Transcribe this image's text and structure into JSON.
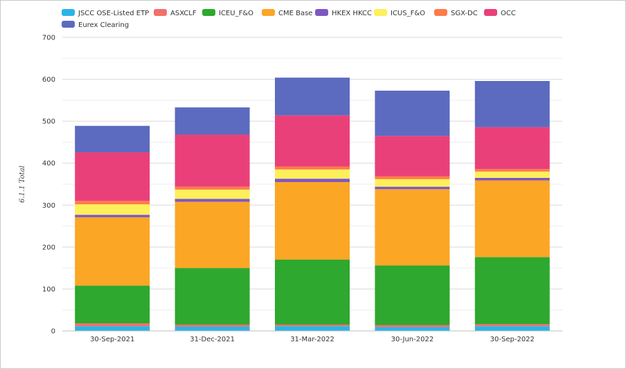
{
  "chart_data": {
    "type": "bar",
    "stacked": true,
    "title": "",
    "xlabel": "",
    "ylabel": "6.1.1 Total",
    "ylim": [
      0,
      700
    ],
    "yticks": [
      0,
      100,
      200,
      300,
      400,
      500,
      600,
      700
    ],
    "grid": true,
    "legend_position": "top-left",
    "categories": [
      "30-Sep-2021",
      "31-Dec-2021",
      "31-Mar-2022",
      "30-Jun-2022",
      "30-Sep-2022"
    ],
    "series": [
      {
        "name": "JSCC OSE-Listed ETP",
        "color": "#2ab5ea",
        "values": [
          11,
          10,
          11,
          9,
          11
        ]
      },
      {
        "name": "ASXCLF",
        "color": "#f1706a",
        "values": [
          7,
          5,
          4,
          5,
          5
        ]
      },
      {
        "name": "ICEU_F&O",
        "color": "#2ea82e",
        "values": [
          90,
          135,
          155,
          142,
          160
        ]
      },
      {
        "name": "CME Base",
        "color": "#fca626",
        "values": [
          163,
          158,
          185,
          182,
          183
        ]
      },
      {
        "name": "HKEX HKCC",
        "color": "#7e57c2",
        "values": [
          6,
          7,
          8,
          6,
          6
        ]
      },
      {
        "name": "ICUS_F&O",
        "color": "#fdf05a",
        "values": [
          25,
          22,
          22,
          18,
          15
        ]
      },
      {
        "name": "SGX-DC",
        "color": "#ff7b4a",
        "values": [
          8,
          7,
          7,
          7,
          6
        ]
      },
      {
        "name": "OCC",
        "color": "#ea407a",
        "values": [
          116,
          124,
          122,
          96,
          100
        ]
      },
      {
        "name": "Eurex Clearing",
        "color": "#5c6bc0",
        "values": [
          63,
          65,
          90,
          108,
          110
        ]
      }
    ]
  }
}
